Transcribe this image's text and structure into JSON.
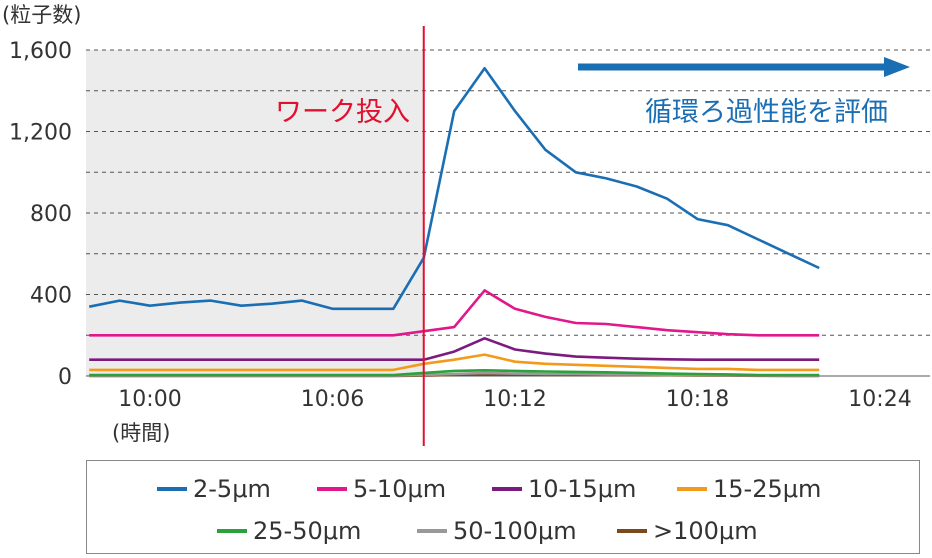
{
  "chart_data": {
    "type": "line",
    "ylabel": "(粒子数)",
    "xlabel": "(時間)",
    "yticks": [
      "0",
      "400",
      "800",
      "1,200",
      "1,600"
    ],
    "ylim": [
      0,
      1600
    ],
    "xticks": [
      "10:00",
      "10:06",
      "10:12",
      "10:18",
      "10:24"
    ],
    "xlim": [
      "09:58",
      "10:25"
    ],
    "grid": "horizontal dashed",
    "legend_placement": "bottom",
    "x": [
      "09:58",
      "09:59",
      "10:00",
      "10:01",
      "10:02",
      "10:03",
      "10:04",
      "10:05",
      "10:06",
      "10:07",
      "10:08",
      "10:09",
      "10:10",
      "10:11",
      "10:12",
      "10:13",
      "10:14",
      "10:15",
      "10:16",
      "10:17",
      "10:18",
      "10:19",
      "10:20",
      "10:21",
      "10:22",
      "10:23",
      "10:24",
      "10:25"
    ],
    "series": [
      {
        "name": "2-5μm",
        "color": "#1a6eb4",
        "values": [
          340,
          370,
          345,
          360,
          370,
          345,
          355,
          370,
          330,
          330,
          330,
          580,
          1300,
          1510,
          1300,
          1110,
          1000,
          970,
          930,
          870,
          770,
          740,
          670,
          600,
          530,
          null,
          null,
          null
        ]
      },
      {
        "name": "5-10μm",
        "color": "#e2178a",
        "values": [
          200,
          200,
          200,
          200,
          200,
          200,
          200,
          200,
          200,
          200,
          200,
          220,
          240,
          420,
          330,
          290,
          260,
          255,
          240,
          225,
          215,
          205,
          200,
          200,
          200,
          null,
          null,
          null
        ]
      },
      {
        "name": "10-15μm",
        "color": "#7b1a7f",
        "values": [
          80,
          80,
          80,
          80,
          80,
          80,
          80,
          80,
          80,
          80,
          80,
          80,
          120,
          185,
          130,
          110,
          95,
          90,
          85,
          82,
          80,
          80,
          80,
          80,
          80,
          null,
          null,
          null
        ]
      },
      {
        "name": "15-25μm",
        "color": "#f39a1b",
        "values": [
          30,
          30,
          30,
          30,
          30,
          30,
          30,
          30,
          30,
          30,
          30,
          60,
          80,
          105,
          70,
          60,
          55,
          50,
          45,
          40,
          35,
          35,
          30,
          30,
          30,
          null,
          null,
          null
        ]
      },
      {
        "name": "25-50μm",
        "color": "#2aa13a",
        "values": [
          5,
          5,
          5,
          5,
          5,
          5,
          5,
          5,
          5,
          5,
          5,
          15,
          25,
          28,
          25,
          22,
          20,
          18,
          15,
          12,
          10,
          8,
          5,
          5,
          5,
          null,
          null,
          null
        ]
      },
      {
        "name": "50-100μm",
        "color": "#999999",
        "values": [
          2,
          2,
          2,
          2,
          2,
          2,
          2,
          2,
          2,
          2,
          2,
          5,
          10,
          15,
          12,
          10,
          10,
          8,
          8,
          6,
          5,
          4,
          3,
          2,
          2,
          null,
          null,
          null
        ]
      },
      {
        "name": ">100μm",
        "color": "#7a4a1a",
        "values": [
          0,
          0,
          0,
          0,
          0,
          0,
          0,
          0,
          0,
          0,
          0,
          2,
          5,
          8,
          7,
          6,
          5,
          5,
          5,
          4,
          3,
          2,
          1,
          0,
          0,
          null,
          null,
          null
        ]
      }
    ],
    "annotations": {
      "work_input": {
        "label": "ワーク投入",
        "x": "10:09",
        "color": "#e0102e"
      },
      "evaluation": {
        "label": "循環ろ過性能を評価",
        "color": "#1a6eb4"
      }
    },
    "shaded_region": {
      "from": "09:58",
      "to": "10:09",
      "color": "#ececec"
    }
  }
}
